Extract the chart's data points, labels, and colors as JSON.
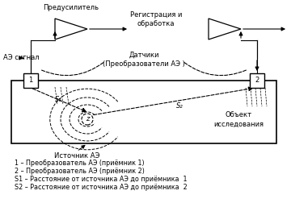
{
  "bg_color": "#ffffff",
  "text_color": "#000000",
  "title_predusil": "Предусилитель",
  "title_registr": "Регистрация и\nобработка",
  "title_datchiki": "Датчики\n(Преобразователи АЭ )",
  "title_ae_signal": "АЭ сигнал",
  "title_istochnik": "Источник АЭ",
  "title_object": "Объект\nисследования",
  "legend_1": "1 – Преобразователь АЭ (приёмник 1)",
  "legend_2": "2 – Преобразователь АЭ (приёмник 2)",
  "legend_s1": "S1 – Расстояние от источника АЭ до приёмника  1",
  "legend_s2": "S2 – Расстояние от источника АЭ до приёмника  2",
  "font_size": 6.0,
  "legend_font_size": 5.8
}
